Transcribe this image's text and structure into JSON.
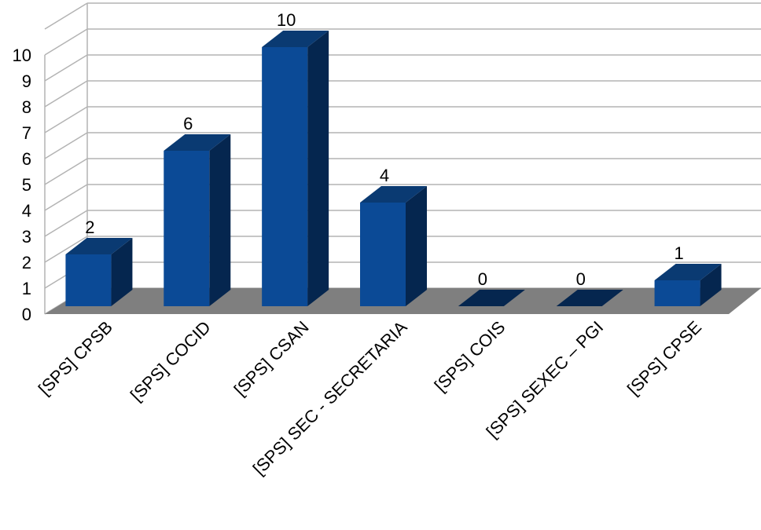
{
  "chart_data": {
    "type": "bar",
    "style": "3d-column",
    "categories": [
      "[SPS] CPSB",
      "[SPS] COCID",
      "[SPS] CSAN",
      "[SPS] SEC - SECRETARIA",
      "[SPS] COIS",
      "[SPS] SEXEC – PGI",
      "[SPS] CPSE"
    ],
    "values": [
      2,
      6,
      10,
      4,
      0,
      0,
      1
    ],
    "data_labels": [
      "2",
      "6",
      "10",
      "4",
      "0",
      "0",
      "1"
    ],
    "yticks": [
      "0",
      "1",
      "2",
      "3",
      "4",
      "5",
      "6",
      "7",
      "8",
      "9",
      "10"
    ],
    "ylim": [
      0,
      10
    ],
    "grid": true,
    "legend": "none",
    "colors": {
      "bar_front": "#0b4a96",
      "bar_side": "#05264f",
      "bar_top": "#0a3a72",
      "floor": "#7f7f7f",
      "grid": "#b3b3b3"
    }
  }
}
